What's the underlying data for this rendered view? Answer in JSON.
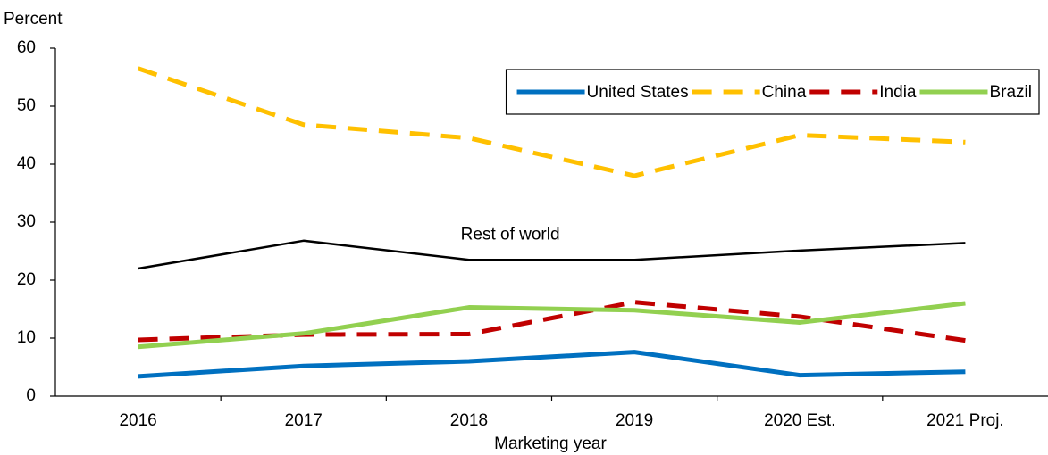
{
  "chart_data": {
    "type": "line",
    "y_axis_title": "Percent",
    "x_axis_title": "Marketing year",
    "categories": [
      "2016",
      "2017",
      "2018",
      "2019",
      "2020 Est.",
      "2021 Proj."
    ],
    "series": [
      {
        "name": "United States",
        "color": "#0070c0",
        "dash": "solid",
        "values": [
          3.4,
          5.2,
          6.0,
          7.6,
          3.6,
          4.2
        ]
      },
      {
        "name": "China",
        "color": "#ffc000",
        "dash": "dashed",
        "values": [
          56.5,
          46.8,
          44.5,
          38.0,
          45.0,
          43.8
        ]
      },
      {
        "name": "India",
        "color": "#c00000",
        "dash": "dashed",
        "values": [
          9.7,
          10.6,
          10.7,
          16.2,
          13.7,
          9.6
        ]
      },
      {
        "name": "Brazil",
        "color": "#92d050",
        "dash": "solid",
        "values": [
          8.5,
          10.8,
          15.3,
          14.8,
          12.7,
          16.0
        ]
      },
      {
        "name": "Rest of world",
        "color": "#000000",
        "dash": "solid",
        "label_inline": true,
        "values": [
          22.0,
          26.8,
          23.5,
          23.5,
          25.1,
          26.4
        ]
      }
    ],
    "ylim": [
      0,
      60
    ],
    "yticks": [
      0,
      10,
      20,
      30,
      40,
      50,
      60
    ],
    "grid": false,
    "legend": "upper right"
  }
}
